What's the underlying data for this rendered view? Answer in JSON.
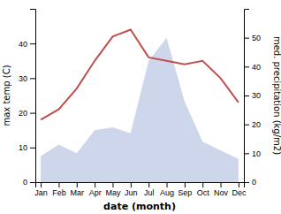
{
  "chart_data": {
    "type": "line",
    "xlabel": "date (month)",
    "ylabel": "max temp (C)",
    "y2label": "med. precipitation (kg/m2)",
    "categories": [
      "Jan",
      "Feb",
      "Mar",
      "Apr",
      "May",
      "Jun",
      "Jul",
      "Aug",
      "Sep",
      "Oct",
      "Nov",
      "Dec"
    ],
    "series": [
      {
        "type": "area",
        "axis": "y2",
        "color": "#c5cfe8",
        "values": [
          9,
          13,
          10,
          18,
          19,
          17,
          42,
          50,
          28,
          14,
          11,
          8
        ]
      },
      {
        "type": "line",
        "color": "#c0504d",
        "values": [
          18,
          21,
          27,
          35,
          42,
          44,
          36,
          35,
          34,
          35,
          30,
          23
        ]
      }
    ],
    "ylim": [
      0,
      50
    ],
    "yticks": [
      0,
      10,
      20,
      30,
      40
    ],
    "y2lim": [
      0,
      60
    ],
    "y2ticks": [
      0,
      10,
      20,
      30,
      40,
      50
    ],
    "grid": false
  }
}
